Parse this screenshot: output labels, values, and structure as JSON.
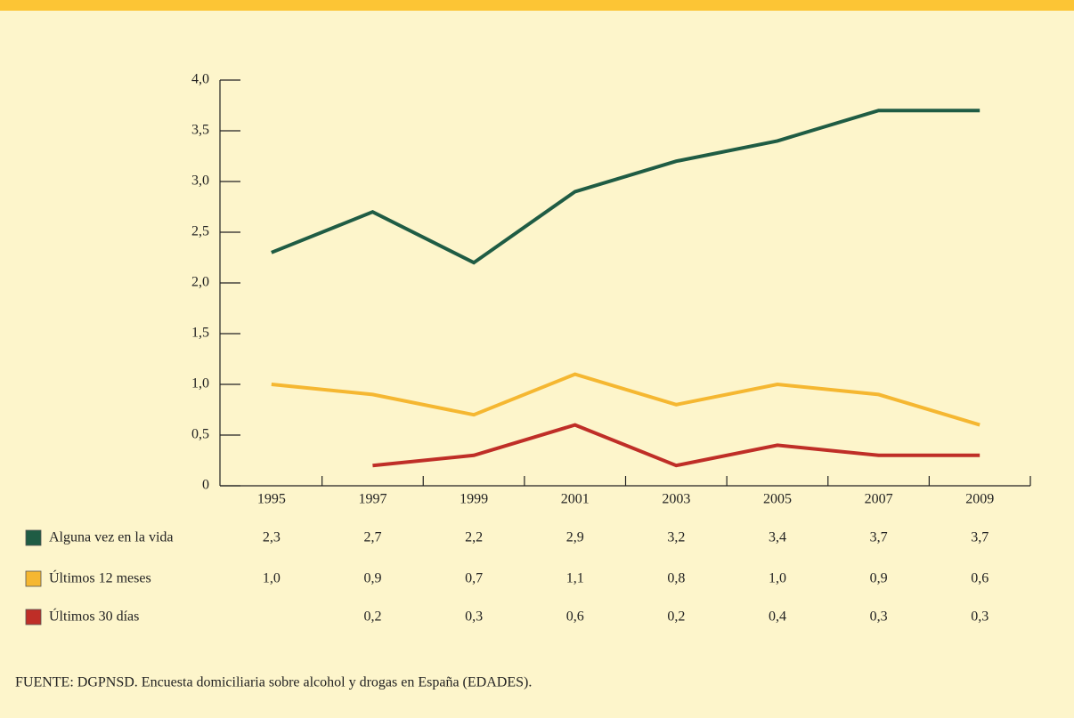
{
  "chart_data": {
    "type": "line",
    "categories": [
      "1995",
      "1997",
      "1999",
      "2001",
      "2003",
      "2005",
      "2007",
      "2009"
    ],
    "series": [
      {
        "name": "Alguna vez en la vida",
        "color": "#1f5c44",
        "values": [
          2.3,
          2.7,
          2.2,
          2.9,
          3.2,
          3.4,
          3.7,
          3.7
        ],
        "value_labels": [
          "2,3",
          "2,7",
          "2,2",
          "2,9",
          "3,2",
          "3,4",
          "3,7",
          "3,7"
        ]
      },
      {
        "name": "Últimos 12 meses",
        "color": "#f5b731",
        "values": [
          1.0,
          0.9,
          0.7,
          1.1,
          0.8,
          1.0,
          0.9,
          0.6
        ],
        "value_labels": [
          "1,0",
          "0,9",
          "0,7",
          "1,1",
          "0,8",
          "1,0",
          "0,9",
          "0,6"
        ]
      },
      {
        "name": "Últimos 30 días",
        "color": "#bf2e27",
        "values": [
          null,
          0.2,
          0.3,
          0.6,
          0.2,
          0.4,
          0.3,
          0.3
        ],
        "value_labels": [
          null,
          "0,2",
          "0,3",
          "0,6",
          "0,2",
          "0,4",
          "0,3",
          "0,3"
        ]
      }
    ],
    "ylim": [
      0,
      4
    ],
    "yticks": [
      0,
      {
        "value": 0.5,
        "label": "0,5"
      },
      {
        "value": 1,
        "label": "1,0"
      },
      {
        "value": 1.5,
        "label": "1,5"
      },
      {
        "value": 2,
        "label": "2,0"
      },
      {
        "value": 2.5,
        "label": "2,5"
      },
      {
        "value": 3,
        "label": "3,0"
      },
      {
        "value": 3.5,
        "label": "3,5"
      },
      {
        "value": 4,
        "label": "4,0"
      }
    ],
    "source": "FUENTE: DGPNSD. Encuesta domiciliaria sobre alcohol y drogas en España (EDADES)."
  }
}
